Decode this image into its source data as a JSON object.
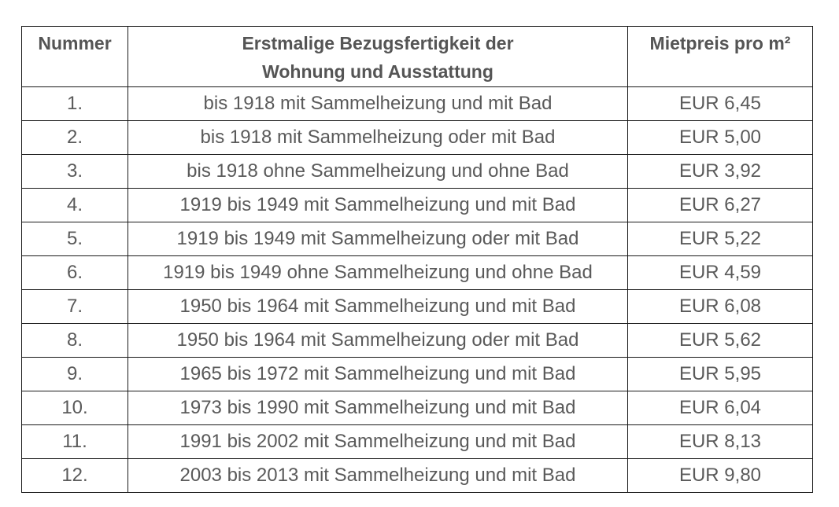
{
  "table": {
    "headers": {
      "number": "Nummer",
      "description_line1": "Erstmalige Bezugsfertigkeit der",
      "description_line2": "Wohnung und Ausstattung",
      "price": "Mietpreis pro m²"
    },
    "rows": [
      {
        "number": "1.",
        "description": "bis 1918 mit Sammelheizung und mit Bad",
        "price": "EUR 6,45"
      },
      {
        "number": "2.",
        "description": "bis 1918 mit Sammelheizung oder mit Bad",
        "price": "EUR 5,00"
      },
      {
        "number": "3.",
        "description": "bis 1918 ohne Sammelheizung und ohne Bad",
        "price": "EUR 3,92"
      },
      {
        "number": "4.",
        "description": "1919 bis 1949 mit Sammelheizung und mit Bad",
        "price": "EUR 6,27"
      },
      {
        "number": "5.",
        "description": "1919 bis 1949 mit Sammelheizung oder mit Bad",
        "price": "EUR 5,22"
      },
      {
        "number": "6.",
        "description": "1919 bis 1949 ohne Sammelheizung und ohne Bad",
        "price": "EUR 4,59"
      },
      {
        "number": "7.",
        "description": "1950 bis 1964 mit Sammelheizung und mit Bad",
        "price": "EUR 6,08"
      },
      {
        "number": "8.",
        "description": "1950 bis 1964 mit Sammelheizung oder mit Bad",
        "price": "EUR 5,62"
      },
      {
        "number": "9.",
        "description": "1965 bis 1972 mit Sammelheizung und mit Bad",
        "price": "EUR 5,95"
      },
      {
        "number": "10.",
        "description": "1973 bis 1990 mit Sammelheizung und mit Bad",
        "price": "EUR 6,04"
      },
      {
        "number": "11.",
        "description": "1991 bis 2002 mit Sammelheizung und mit Bad",
        "price": "EUR 8,13"
      },
      {
        "number": "12.",
        "description": "2003 bis 2013 mit Sammelheizung und mit Bad",
        "price": "EUR 9,80"
      }
    ]
  }
}
